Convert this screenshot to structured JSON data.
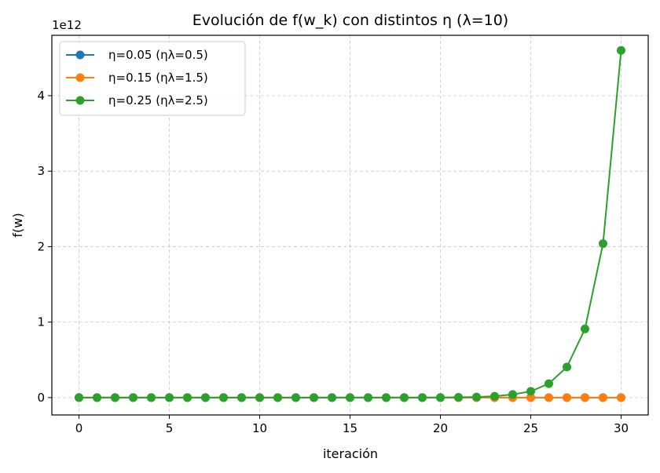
{
  "chart_data": {
    "type": "line",
    "title": "Evolución de f(w_k) con distintos η (λ=10)",
    "xlabel": "iteración",
    "ylabel": "f(w)",
    "y_scale_label": "1e12",
    "xlim": [
      -1.5,
      31.5
    ],
    "ylim": [
      -0.23,
      4.8
    ],
    "xticks": [
      0,
      5,
      10,
      15,
      20,
      25,
      30
    ],
    "yticks": [
      0,
      1,
      2,
      3,
      4
    ],
    "grid": true,
    "legend_position": "upper-left",
    "x": [
      0,
      1,
      2,
      3,
      4,
      5,
      6,
      7,
      8,
      9,
      10,
      11,
      12,
      13,
      14,
      15,
      16,
      17,
      18,
      19,
      20,
      21,
      22,
      23,
      24,
      25,
      26,
      27,
      28,
      29,
      30
    ],
    "series": [
      {
        "name": "η=0.05 (ηλ=0.5)",
        "color": "#1f77b4",
        "values": [
          0,
          0,
          0,
          0,
          0,
          0,
          0,
          0,
          0,
          0,
          0,
          0,
          0,
          0,
          0,
          0,
          0,
          0,
          0,
          0,
          0,
          0,
          0,
          0,
          0,
          0,
          0,
          0,
          0,
          0,
          0
        ]
      },
      {
        "name": "η=0.15 (ηλ=1.5)",
        "color": "#ff7f0e",
        "values": [
          0,
          0,
          0,
          0,
          0,
          0,
          0,
          0,
          0,
          0,
          0,
          0,
          0,
          0,
          0,
          0,
          0,
          0,
          0,
          0,
          0,
          0,
          0,
          0,
          0,
          0,
          0,
          0,
          0,
          0,
          0
        ]
      },
      {
        "name": "η=0.25 (ηλ=2.5)",
        "color": "#2ca02c",
        "values": [
          0,
          0,
          0,
          0,
          0,
          0,
          0,
          0,
          0,
          0,
          0,
          0,
          0,
          0,
          0,
          0,
          0,
          0,
          0,
          0.0004,
          0.0016,
          0.0036,
          0.0081,
          0.0182,
          0.041,
          0.083,
          0.185,
          0.405,
          0.91,
          2.04,
          4.6
        ]
      }
    ]
  }
}
